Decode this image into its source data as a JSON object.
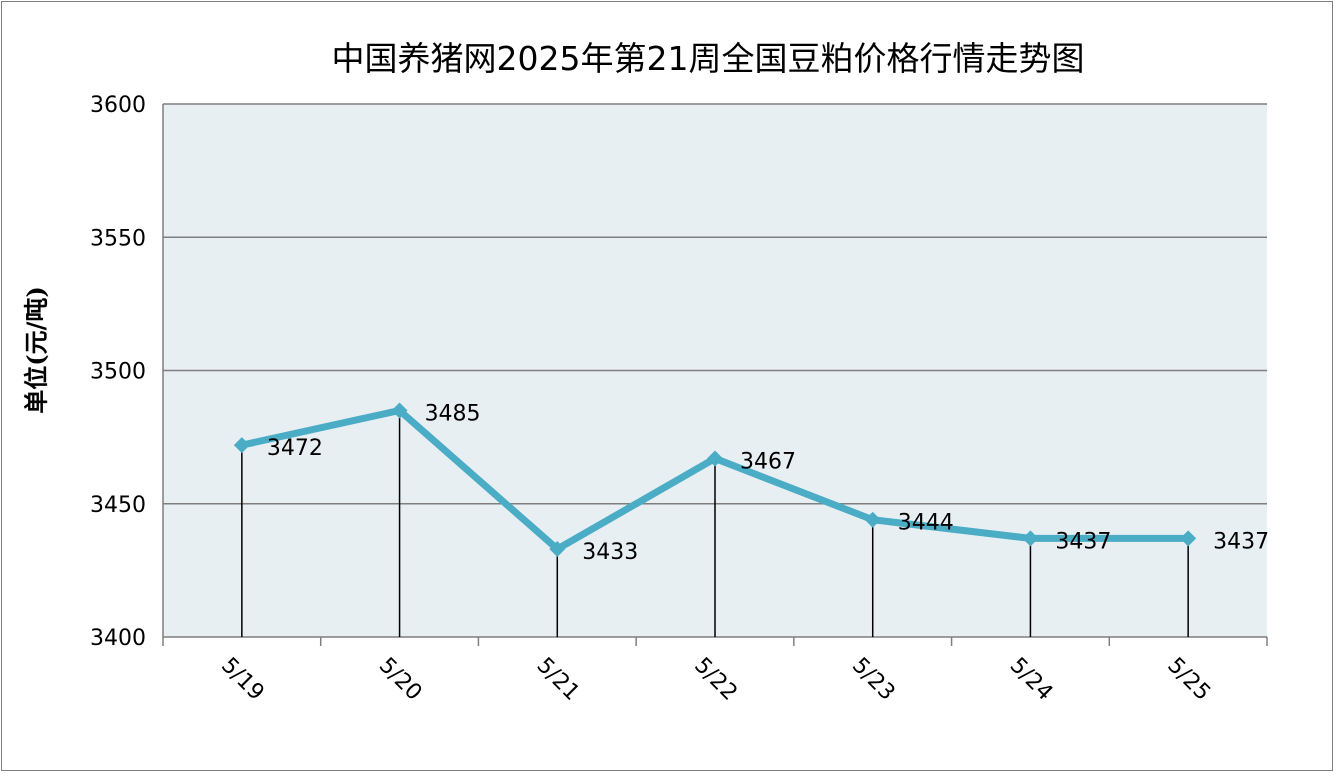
{
  "chart_data": {
    "type": "line",
    "title": "中国养猪网2025年第21周全国豆粕价格行情走势图",
    "ylabel": "单位(元/吨)",
    "xlabel": "",
    "categories": [
      "5/19",
      "5/20",
      "5/21",
      "5/22",
      "5/23",
      "5/24",
      "5/25"
    ],
    "series": [
      {
        "values": [
          3472,
          3485,
          3433,
          3467,
          3444,
          3437,
          3437
        ],
        "color": "#4bacc6"
      }
    ],
    "ylim": [
      3400,
      3600
    ],
    "yticks": [
      3400,
      3450,
      3500,
      3550,
      3600
    ],
    "grid": true,
    "drop_lines": true,
    "plot_background": "#e8eff3",
    "gridline_color": "#7f7f7f",
    "line_color": "#4bacc6"
  }
}
